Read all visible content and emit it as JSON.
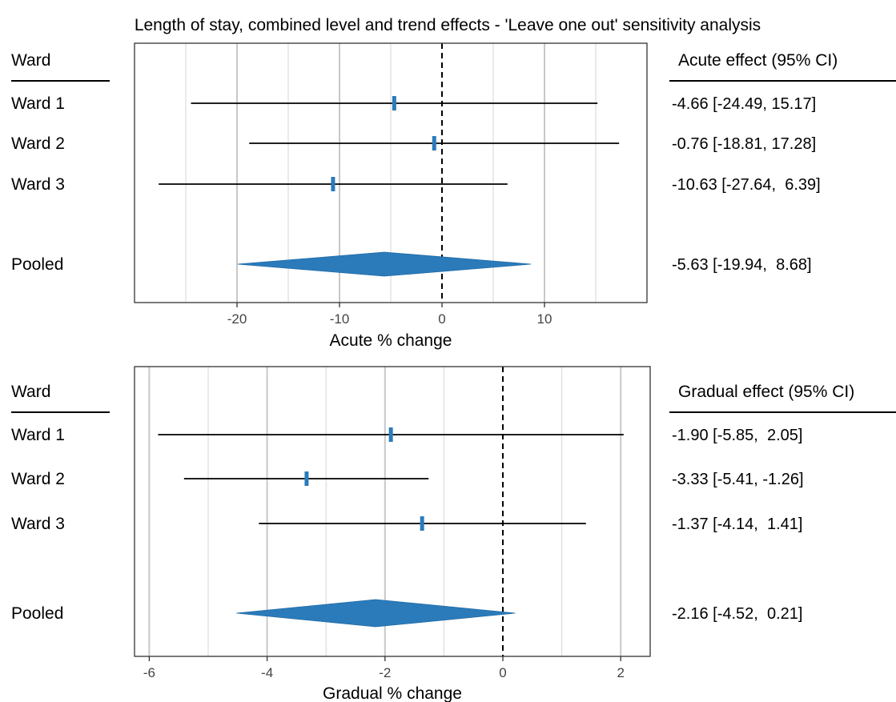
{
  "title": "Length of stay, combined level and trend effects - 'Leave one out' sensitivity analysis",
  "colors": {
    "estimate": "#2b7bba",
    "line": "#000000",
    "grid": "#c8c8c8",
    "frame": "#333333"
  },
  "chart_data": [
    {
      "type": "forest",
      "xlabel": "Acute % change",
      "xlim": [
        -30,
        20
      ],
      "xticks": [
        -20,
        -10,
        0,
        10
      ],
      "minor_gridlines": [
        -25,
        -15,
        -5,
        5,
        15
      ],
      "reference_line": 0,
      "left_header": "Ward",
      "right_header": "Acute effect (95% CI)",
      "rows": [
        {
          "label": "Ward 1",
          "estimate": -4.66,
          "lower": -24.49,
          "upper": 15.17,
          "text": "-4.66 [-24.49, 15.17]"
        },
        {
          "label": "Ward 2",
          "estimate": -0.76,
          "lower": -18.81,
          "upper": 17.28,
          "text": "-0.76 [-18.81, 17.28]"
        },
        {
          "label": "Ward 3",
          "estimate": -10.63,
          "lower": -27.64,
          "upper": 6.39,
          "text": "-10.63 [-27.64,  6.39]"
        }
      ],
      "pooled": {
        "label": "Pooled",
        "estimate": -5.63,
        "lower": -19.94,
        "upper": 8.68,
        "text": "-5.63 [-19.94,  8.68]"
      }
    },
    {
      "type": "forest",
      "xlabel": "Gradual % change",
      "xlim": [
        -6.25,
        2.5
      ],
      "xticks": [
        -6,
        -4,
        -2,
        0,
        2
      ],
      "minor_gridlines": [
        -5,
        -3,
        -1,
        1
      ],
      "reference_line": 0,
      "left_header": "Ward",
      "right_header": "Gradual effect (95% CI)",
      "rows": [
        {
          "label": "Ward 1",
          "estimate": -1.9,
          "lower": -5.85,
          "upper": 2.05,
          "text": "-1.90 [-5.85,  2.05]"
        },
        {
          "label": "Ward 2",
          "estimate": -3.33,
          "lower": -5.41,
          "upper": -1.26,
          "text": "-3.33 [-5.41, -1.26]"
        },
        {
          "label": "Ward 3",
          "estimate": -1.37,
          "lower": -4.14,
          "upper": 1.41,
          "text": "-1.37 [-4.14,  1.41]"
        }
      ],
      "pooled": {
        "label": "Pooled",
        "estimate": -2.16,
        "lower": -4.52,
        "upper": 0.21,
        "text": "-2.16 [-4.52,  0.21]"
      }
    }
  ]
}
